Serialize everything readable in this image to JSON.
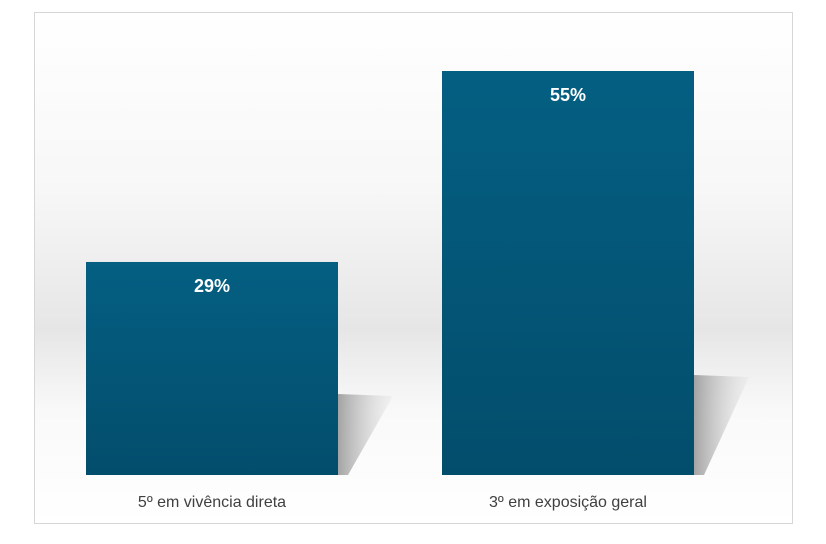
{
  "chart_data": {
    "type": "bar",
    "title": "",
    "xlabel": "",
    "ylabel": "",
    "ylim": [
      0,
      60
    ],
    "grid": false,
    "legend": "none",
    "categories": [
      "5º em vivência direta",
      "3º em exposição geral"
    ],
    "values": [
      29,
      55
    ],
    "data_labels": [
      "29%",
      "55%"
    ],
    "bar_color": "#045878"
  }
}
